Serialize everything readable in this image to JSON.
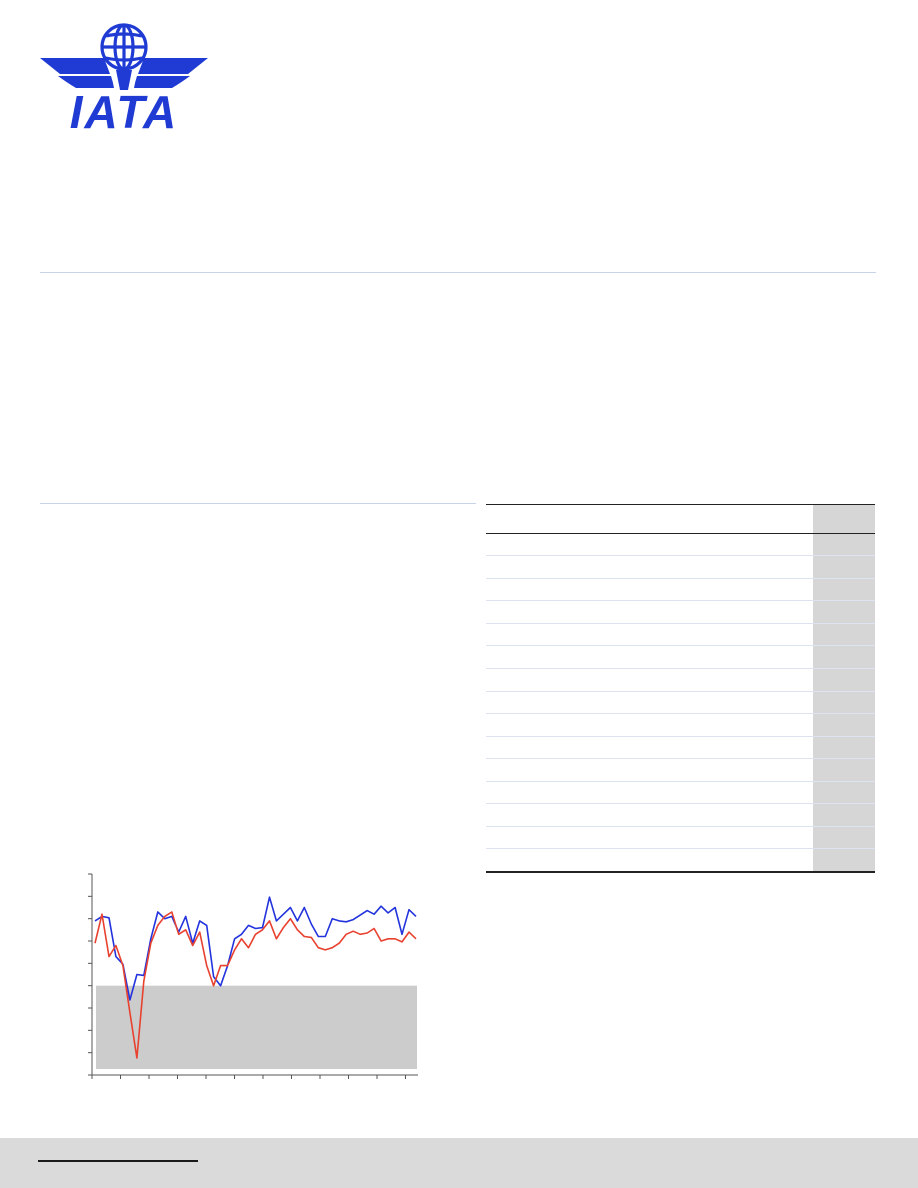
{
  "logo": {
    "text": "IATA",
    "color": "#1f3bd4"
  },
  "colors": {
    "rule": "#c7d3e6",
    "table_shade": "#d6d6d6",
    "chart_band": "#cccccc",
    "series_blue": "#2233dd",
    "series_red": "#e8412f",
    "footer": "#dadada"
  },
  "chart_data": {
    "type": "line",
    "grid": false,
    "series": [
      {
        "color": "#2233dd",
        "values": [
          54.5,
          55.5,
          55.2,
          46.5,
          44.8,
          36.8,
          42.5,
          42.3,
          50.5,
          56.5,
          55.0,
          55.5,
          52.0,
          55.5,
          49.5,
          54.5,
          53.5,
          42.0,
          40.0,
          44.5,
          50.5,
          51.5,
          53.5,
          52.8,
          53.0,
          59.8,
          54.5,
          56.0,
          57.5,
          54.5,
          57.5,
          53.8,
          51.0,
          51.0,
          55.0,
          54.5,
          54.3,
          54.8,
          55.8,
          56.8,
          56.0,
          57.8,
          56.3,
          57.5,
          51.5,
          57.0,
          55.5
        ]
      },
      {
        "color": "#e8412f",
        "values": [
          49.5,
          56.0,
          46.5,
          49.0,
          44.5,
          34.0,
          23.8,
          41.0,
          49.5,
          53.5,
          55.5,
          56.5,
          51.5,
          52.5,
          49.0,
          52.0,
          44.5,
          40.0,
          44.5,
          44.5,
          48.0,
          50.5,
          48.5,
          51.5,
          52.5,
          54.5,
          50.5,
          53.0,
          55.0,
          52.5,
          51.0,
          50.8,
          48.5,
          48.0,
          48.5,
          49.5,
          51.5,
          52.2,
          51.5,
          51.8,
          52.8,
          50.0,
          50.5,
          50.5,
          49.8,
          52.0,
          50.5
        ]
      }
    ],
    "ylim": [
      20,
      65
    ],
    "shaded_region": {
      "y_from": 20,
      "y_to": 40,
      "color": "#cccccc"
    }
  }
}
